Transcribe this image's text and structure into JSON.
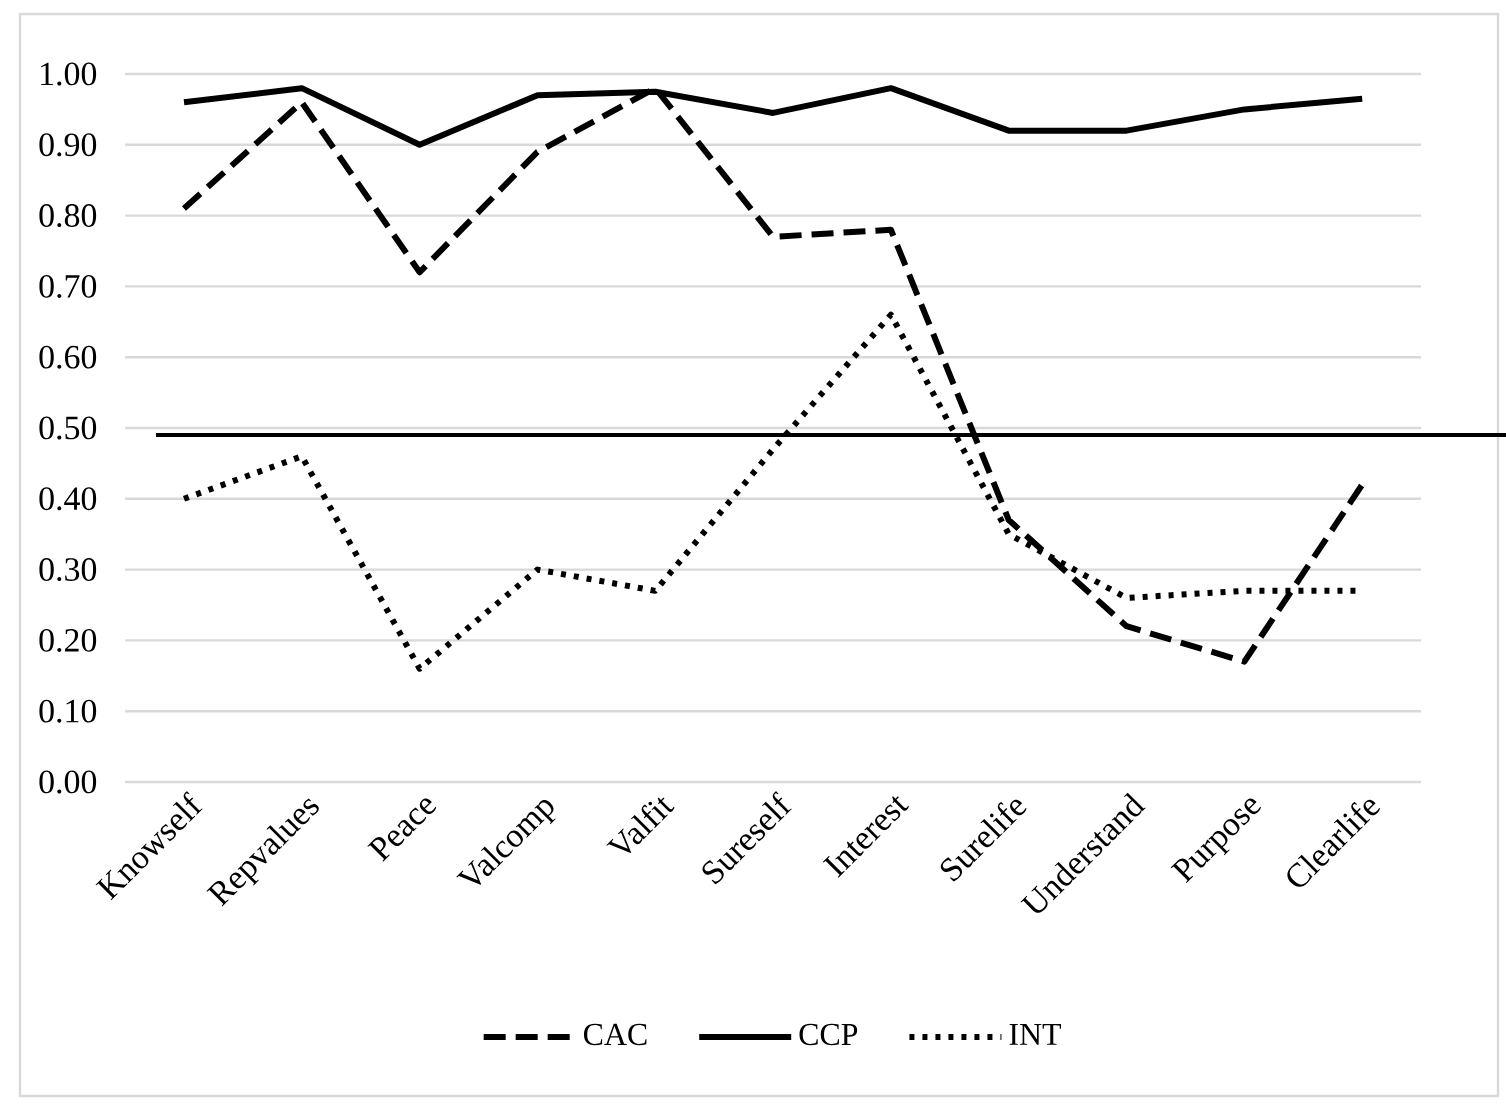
{
  "chart_data": {
    "type": "line",
    "categories": [
      "Knowself",
      "Repvalues",
      "Peace",
      "Valcomp",
      "Valfit",
      "Sureself",
      "Interest",
      "Surelife",
      "Understand",
      "Purpose",
      "Clearlife"
    ],
    "series": [
      {
        "name": "CAC",
        "color": "#000000",
        "line_style": "dashed",
        "values": [
          0.81,
          0.96,
          0.72,
          0.89,
          0.98,
          0.77,
          0.78,
          0.37,
          0.22,
          0.17,
          0.42
        ]
      },
      {
        "name": "CCP",
        "color": "#000000",
        "line_style": "solid",
        "values": [
          0.96,
          0.98,
          0.9,
          0.97,
          0.975,
          0.945,
          0.98,
          0.92,
          0.92,
          0.95,
          0.965
        ]
      },
      {
        "name": "INT",
        "color": "#000000",
        "line_style": "dotted",
        "values": [
          0.4,
          0.46,
          0.16,
          0.3,
          0.27,
          0.47,
          0.66,
          0.35,
          0.26,
          0.27,
          0.27
        ]
      }
    ],
    "ylim": [
      0,
      1
    ],
    "yticks": [
      {
        "value": 0,
        "label": "0.00"
      },
      {
        "value": 0.1,
        "label": "0.10"
      },
      {
        "value": 0.2,
        "label": "0.20"
      },
      {
        "value": 0.3,
        "label": "0.30"
      },
      {
        "value": 0.4,
        "label": "0.40"
      },
      {
        "value": 0.5,
        "label": "0.50"
      },
      {
        "value": 0.6,
        "label": "0.60"
      },
      {
        "value": 0.7,
        "label": "0.70"
      },
      {
        "value": 0.8,
        "label": "0.80"
      },
      {
        "value": 0.9,
        "label": "0.90"
      },
      {
        "value": 1.0,
        "label": "1.00"
      }
    ],
    "ref_lines": [
      {
        "axis": "y",
        "value": 0.49,
        "color": "#000000"
      }
    ],
    "grid": "y",
    "legend": "bottom",
    "marker": "none"
  }
}
